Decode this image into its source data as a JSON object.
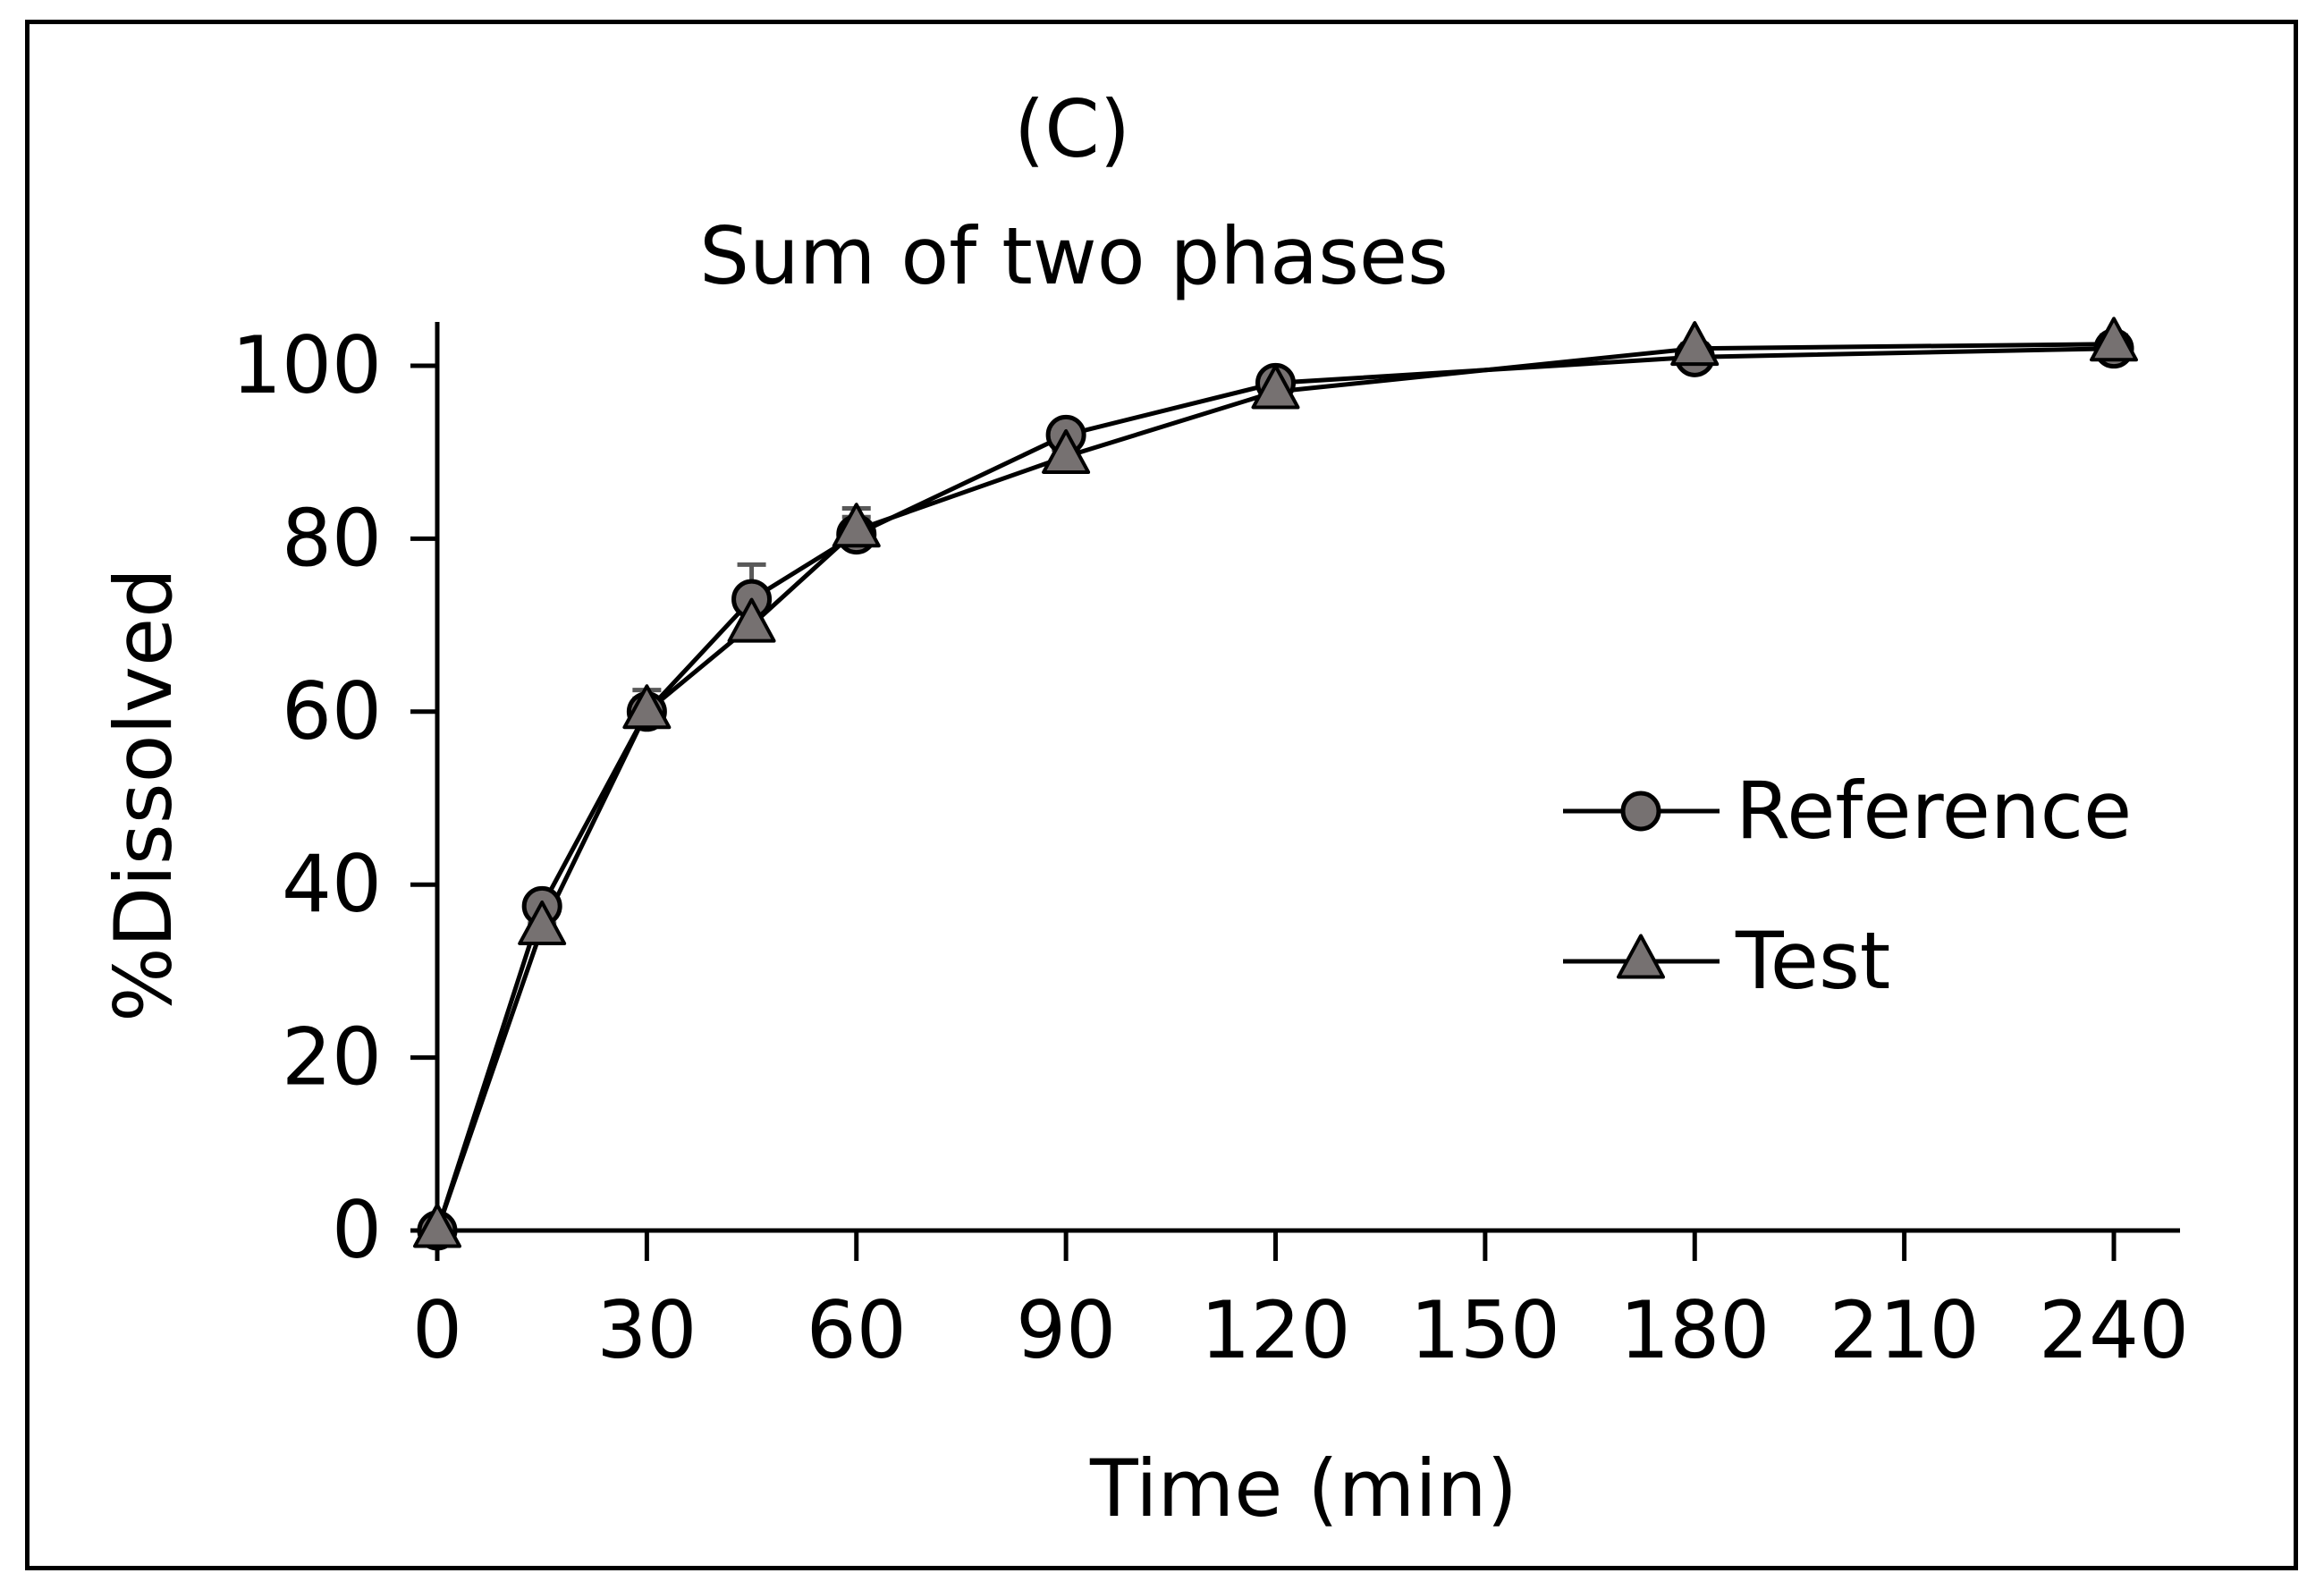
{
  "chart_data": {
    "type": "line",
    "panel_label": "(C)",
    "title": "Sum of two phases",
    "xlabel": "Time (min)",
    "ylabel": "%Dissolved",
    "xlim": [
      0,
      240
    ],
    "ylim": [
      0,
      100
    ],
    "x_ticks": [
      0,
      30,
      60,
      90,
      120,
      150,
      180,
      210,
      240
    ],
    "y_ticks": [
      0,
      20,
      40,
      60,
      80,
      100
    ],
    "x_tick_labels": [
      "0",
      "30",
      "60",
      "90",
      "120",
      "150",
      "180",
      "210",
      "240"
    ],
    "y_tick_labels": [
      "0",
      "20",
      "40",
      "60",
      "80",
      "100"
    ],
    "legend_position": "right-middle",
    "x": [
      0,
      15,
      30,
      45,
      60,
      90,
      120,
      180,
      240
    ],
    "series": [
      {
        "name": "Reference",
        "marker": "circle",
        "values": [
          0,
          37.5,
          60,
          73,
          80.5,
          92,
          98,
          101,
          102
        ],
        "errors": [
          0,
          0.5,
          2.5,
          4,
          3,
          1,
          0.8,
          0.5,
          1.5
        ]
      },
      {
        "name": "Test",
        "marker": "triangle",
        "values": [
          0,
          35,
          60,
          70,
          81,
          89.5,
          97,
          102,
          102.5
        ],
        "errors": [
          0,
          0.5,
          1.5,
          1.5,
          1.5,
          0.8,
          0.6,
          0.5,
          0.8
        ]
      }
    ],
    "colors": {
      "marker_fill": "#767171",
      "marker_stroke": "#000000",
      "line": "#000000",
      "error_bar": "#595959"
    }
  }
}
